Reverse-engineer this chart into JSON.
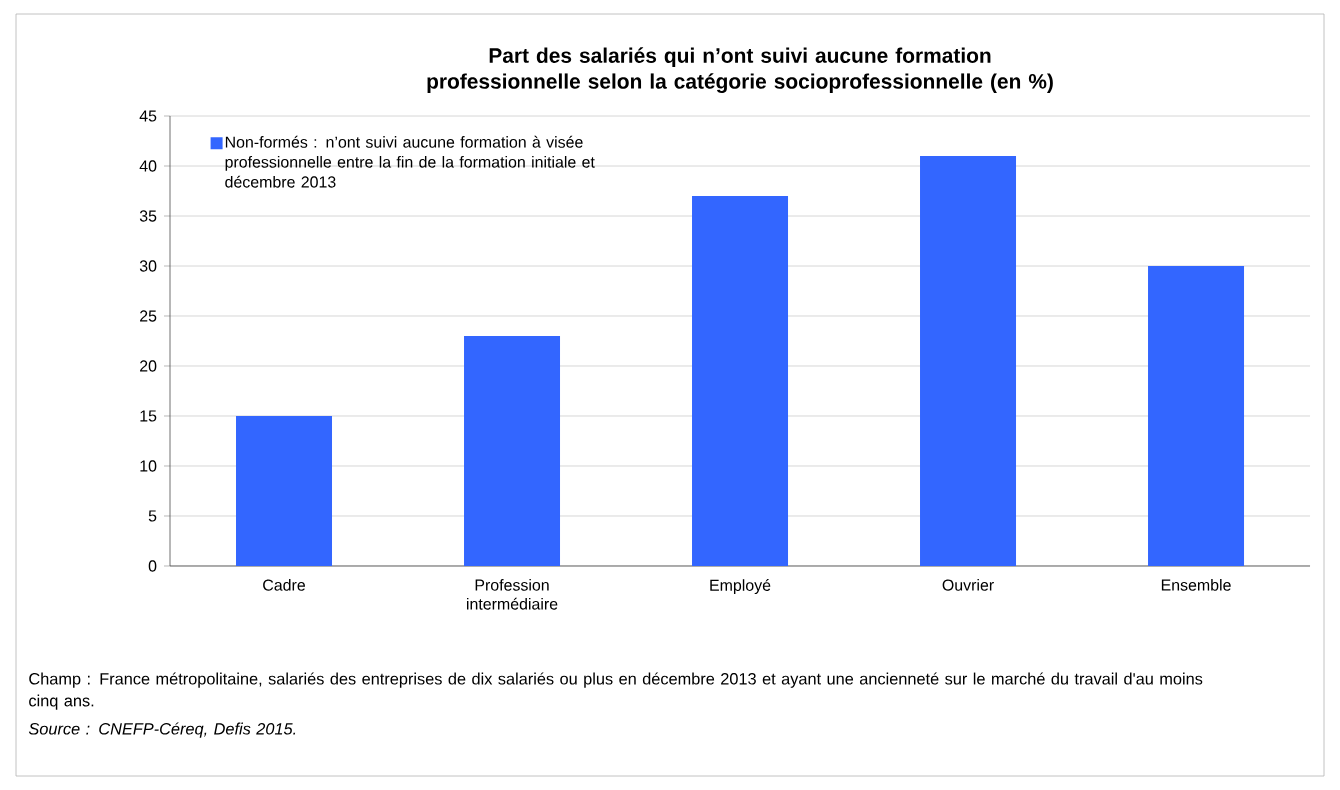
{
  "chart_data": {
    "type": "bar",
    "title": "Part des salariés qui n’ont suivi aucune formation professionnelle selon la catégorie socioprofessionnelle (en %)",
    "categories": [
      "Cadre",
      "Profession intermédiaire",
      "Employé",
      "Ouvrier",
      "Ensemble"
    ],
    "series": [
      {
        "name": "Non-formés : n’ont suivi aucune formation à visée professionnelle entre la fin de la formation initiale et décembre 2013",
        "color": "#3366ff",
        "values": [
          15,
          23,
          37,
          41,
          30
        ]
      }
    ],
    "ylim": [
      0,
      45
    ],
    "yticks": [
      0,
      5,
      10,
      15,
      20,
      25,
      30,
      35,
      40,
      45
    ],
    "grid": "y",
    "legend": "top left",
    "annotations": [
      "Champ : France métropolitaine, salariés des entreprises de dix salariés ou plus en décembre 2013 et ayant une ancienneté sur le marché du travail d'au moins cinq ans.",
      "Source : CNEFP-Céreq, Defis 2015."
    ]
  }
}
